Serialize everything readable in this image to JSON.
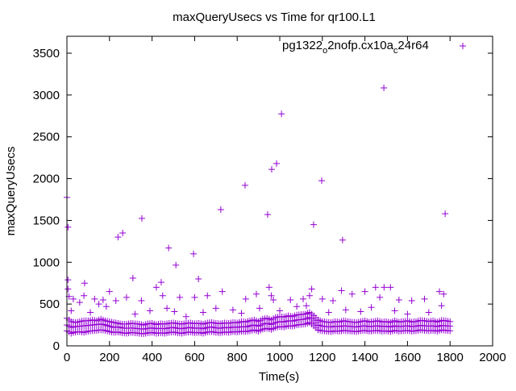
{
  "chart_data": {
    "type": "scatter",
    "title": "maxQueryUsecs vs Time for qr100.L1",
    "xlabel": "Time(s)",
    "ylabel": "maxQueryUsecs",
    "xlim": [
      0,
      2000
    ],
    "ylim": [
      0,
      3600
    ],
    "xticks": [
      0,
      200,
      400,
      600,
      800,
      1000,
      1200,
      1400,
      1600,
      1800,
      2000
    ],
    "yticks": [
      0,
      500,
      1000,
      1500,
      2000,
      2500,
      3000,
      3500
    ],
    "grid": false,
    "legend_placement": "top-right",
    "legend": {
      "base": "pg1322",
      "sub1": "o",
      "mid": "2nofp.cx10a",
      "sub2": "c",
      "tail": "24r64"
    },
    "color": "#9400d3",
    "series": [
      {
        "name": "outliers",
        "x": [
          0,
          5,
          240,
          262,
          352,
          478,
          512,
          595,
          618,
          723,
          837,
          943,
          962,
          985,
          1008,
          1159,
          1197,
          1295,
          1489,
          1777,
          310,
          443,
          83,
          5
        ],
        "y": [
          1775,
          1420,
          1300,
          1350,
          1525,
          1170,
          965,
          1100,
          800,
          1630,
          1920,
          1570,
          2110,
          2180,
          2775,
          1450,
          1975,
          1265,
          3085,
          1580,
          810,
          760,
          750,
          790
        ]
      },
      {
        "name": "mid",
        "x": [
          5,
          10,
          30,
          60,
          80,
          130,
          150,
          170,
          185,
          200,
          230,
          280,
          350,
          420,
          450,
          470,
          530,
          600,
          660,
          700,
          730,
          840,
          890,
          950,
          960,
          970,
          1050,
          1110,
          1140,
          1150,
          1200,
          1250,
          1290,
          1340,
          1400,
          1450,
          1470,
          1490,
          1520,
          1560,
          1620,
          1680,
          1750,
          1770,
          1760,
          20,
          110,
          320,
          390,
          505,
          560,
          640,
          780,
          820,
          905,
          1000,
          1080,
          1125,
          1230,
          1310,
          1380,
          1430,
          1540,
          1600,
          1700
        ],
        "y": [
          680,
          590,
          560,
          520,
          600,
          560,
          500,
          550,
          470,
          650,
          540,
          580,
          540,
          700,
          600,
          450,
          580,
          580,
          600,
          450,
          650,
          560,
          620,
          700,
          600,
          550,
          550,
          560,
          600,
          680,
          560,
          540,
          660,
          620,
          650,
          700,
          580,
          700,
          700,
          550,
          540,
          560,
          650,
          620,
          480,
          420,
          400,
          380,
          420,
          410,
          350,
          400,
          430,
          390,
          450,
          420,
          470,
          480,
          400,
          430,
          410,
          460,
          420,
          380,
          400
        ]
      },
      {
        "name": "band",
        "x": [
          0,
          20,
          40,
          60,
          80,
          100,
          120,
          140,
          160,
          180,
          200,
          220,
          240,
          260,
          280,
          300,
          320,
          340,
          360,
          380,
          400,
          420,
          440,
          460,
          480,
          500,
          520,
          540,
          560,
          580,
          600,
          620,
          640,
          660,
          680,
          700,
          720,
          740,
          760,
          780,
          800,
          820,
          840,
          860,
          880,
          900,
          920,
          940,
          960,
          980,
          1000,
          1020,
          1040,
          1060,
          1080,
          1100,
          1120,
          1140,
          1160,
          1180,
          1200,
          1220,
          1240,
          1260,
          1280,
          1300,
          1320,
          1340,
          1360,
          1380,
          1400,
          1420,
          1440,
          1460,
          1480,
          1500,
          1520,
          1540,
          1560,
          1580,
          1600,
          1620,
          1640,
          1660,
          1680,
          1700,
          1720,
          1740,
          1760,
          1780,
          1800
        ],
        "y_low": [
          180,
          150,
          165,
          170,
          160,
          175,
          180,
          185,
          190,
          185,
          170,
          160,
          165,
          155,
          150,
          160,
          155,
          150,
          145,
          155,
          160,
          150,
          155,
          150,
          160,
          165,
          155,
          150,
          160,
          165,
          155,
          160,
          150,
          165,
          170,
          160,
          155,
          165,
          160,
          170,
          165,
          175,
          170,
          180,
          190,
          175,
          200,
          210,
          195,
          220,
          230,
          225,
          240,
          235,
          250,
          255,
          260,
          280,
          240,
          190,
          180,
          175,
          170,
          180,
          175,
          185,
          180,
          175,
          170,
          180,
          185,
          175,
          180,
          185,
          175,
          180,
          170,
          185,
          175,
          180,
          185,
          175,
          180,
          190,
          185,
          180,
          185,
          175,
          190,
          185,
          180
        ],
        "y_mid": [
          250,
          220,
          230,
          235,
          240,
          245,
          250,
          255,
          260,
          250,
          235,
          220,
          225,
          215,
          210,
          215,
          210,
          205,
          200,
          210,
          215,
          205,
          210,
          205,
          215,
          220,
          210,
          205,
          215,
          220,
          210,
          215,
          205,
          220,
          225,
          215,
          210,
          220,
          215,
          225,
          220,
          230,
          225,
          240,
          250,
          235,
          260,
          270,
          255,
          280,
          290,
          285,
          300,
          295,
          310,
          315,
          320,
          340,
          300,
          250,
          235,
          230,
          225,
          235,
          230,
          240,
          235,
          230,
          225,
          235,
          240,
          230,
          235,
          240,
          230,
          235,
          225,
          240,
          230,
          235,
          240,
          230,
          235,
          245,
          240,
          235,
          240,
          230,
          245,
          240,
          235
        ],
        "y_high": [
          330,
          290,
          280,
          290,
          300,
          300,
          310,
          300,
          320,
          300,
          290,
          280,
          270,
          260,
          260,
          270,
          265,
          260,
          250,
          265,
          270,
          255,
          265,
          260,
          270,
          275,
          265,
          260,
          270,
          275,
          265,
          270,
          260,
          275,
          280,
          270,
          265,
          275,
          270,
          280,
          275,
          290,
          285,
          300,
          310,
          290,
          320,
          330,
          310,
          340,
          350,
          345,
          360,
          350,
          370,
          375,
          380,
          400,
          360,
          310,
          290,
          285,
          280,
          290,
          285,
          300,
          290,
          285,
          280,
          290,
          300,
          285,
          290,
          300,
          285,
          290,
          280,
          300,
          285,
          290,
          300,
          285,
          290,
          305,
          300,
          290,
          300,
          285,
          305,
          300,
          290
        ]
      }
    ]
  }
}
